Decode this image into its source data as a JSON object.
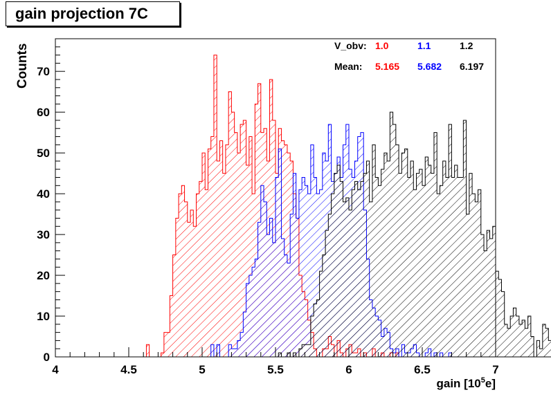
{
  "title": "gain projection 7C",
  "chart_data": {
    "type": "histogram",
    "xlabel_main": "gain [10",
    "xlabel_sup": "5",
    "xlabel_end": "e]",
    "ylabel": "Counts",
    "xlim": [
      4,
      7
    ],
    "ylim": [
      0,
      78
    ],
    "x_ticks": [
      4,
      4.5,
      5,
      5.5,
      6,
      6.5,
      7
    ],
    "x_tick_labels": [
      "4",
      "4.5",
      "5",
      "5.5",
      "6",
      "6.5",
      "7"
    ],
    "y_ticks": [
      0,
      10,
      20,
      30,
      40,
      50,
      60,
      70
    ],
    "y_tick_labels": [
      "0",
      "10",
      "20",
      "30",
      "40",
      "50",
      "60",
      "70"
    ],
    "bin_width": 0.02,
    "hatch": "diagonal",
    "legend": {
      "row1_label": "V_obv:",
      "row2_label": "Mean:",
      "values": [
        {
          "vobv": "1.0",
          "mean": "5.165",
          "color": "#ff0000"
        },
        {
          "vobv": "1.1",
          "mean": "5.682",
          "color": "#0000ff"
        },
        {
          "vobv": "1.2",
          "mean": "6.197",
          "color": "#000000"
        }
      ]
    },
    "series": [
      {
        "vobv": "1.0",
        "color": "#ff0000",
        "x_start": 4.6,
        "counts": [
          0,
          3,
          0,
          0,
          0,
          0,
          1,
          6,
          6,
          15,
          25,
          34,
          40,
          42,
          38,
          33,
          36,
          32,
          40,
          43,
          50,
          41,
          51,
          54,
          74,
          48,
          53,
          45,
          52,
          65,
          60,
          55,
          50,
          57,
          58,
          47,
          54,
          40,
          62,
          67,
          55,
          56,
          48,
          68,
          58,
          45,
          56,
          53,
          52,
          50,
          48,
          40,
          34,
          20,
          16,
          14,
          9,
          6,
          2,
          0,
          0,
          2,
          2,
          5,
          3,
          0,
          4,
          1,
          0,
          2,
          3,
          1,
          1,
          2,
          0,
          1,
          0,
          0,
          2,
          0,
          0,
          1,
          0,
          0,
          1,
          0,
          1
        ]
      },
      {
        "vobv": "1.1",
        "color": "#0000ff",
        "x_start": 5.06,
        "counts": [
          3,
          0,
          3,
          0,
          0,
          0,
          3,
          2,
          2,
          4,
          6,
          11,
          18,
          20,
          22,
          24,
          33,
          42,
          38,
          30,
          34,
          28,
          44,
          51,
          29,
          25,
          23,
          35,
          45,
          34,
          41,
          44,
          42,
          40,
          52,
          44,
          40,
          41,
          50,
          48,
          57,
          43,
          45,
          49,
          44,
          52,
          57,
          46,
          44,
          48,
          54,
          55,
          36,
          24,
          14,
          12,
          10,
          9,
          5,
          7,
          6,
          2,
          1,
          2,
          0,
          3,
          1,
          1,
          2,
          3,
          1,
          0,
          0,
          1,
          2,
          0,
          1,
          0,
          1,
          0,
          0,
          1
        ]
      },
      {
        "vobv": "1.2",
        "color": "#000000",
        "x_start": 5.52,
        "counts": [
          1,
          0,
          0,
          1,
          0,
          1,
          0,
          2,
          3,
          3,
          3,
          10,
          13,
          14,
          21,
          25,
          31,
          35,
          40,
          45,
          47,
          43,
          38,
          39,
          36,
          41,
          43,
          41,
          43,
          45,
          48,
          38,
          52,
          44,
          42,
          46,
          50,
          48,
          60,
          57,
          52,
          45,
          50,
          51,
          44,
          48,
          41,
          45,
          46,
          42,
          49,
          47,
          45,
          55,
          40,
          42,
          48,
          44,
          57,
          44,
          47,
          44,
          44,
          58,
          35,
          45,
          40,
          38,
          41,
          30,
          26,
          31,
          29,
          32,
          21,
          19,
          16,
          8,
          7,
          10,
          12,
          10,
          8,
          9,
          7,
          10,
          5,
          0,
          4,
          2,
          8,
          7,
          4,
          3,
          0
        ]
      }
    ]
  }
}
